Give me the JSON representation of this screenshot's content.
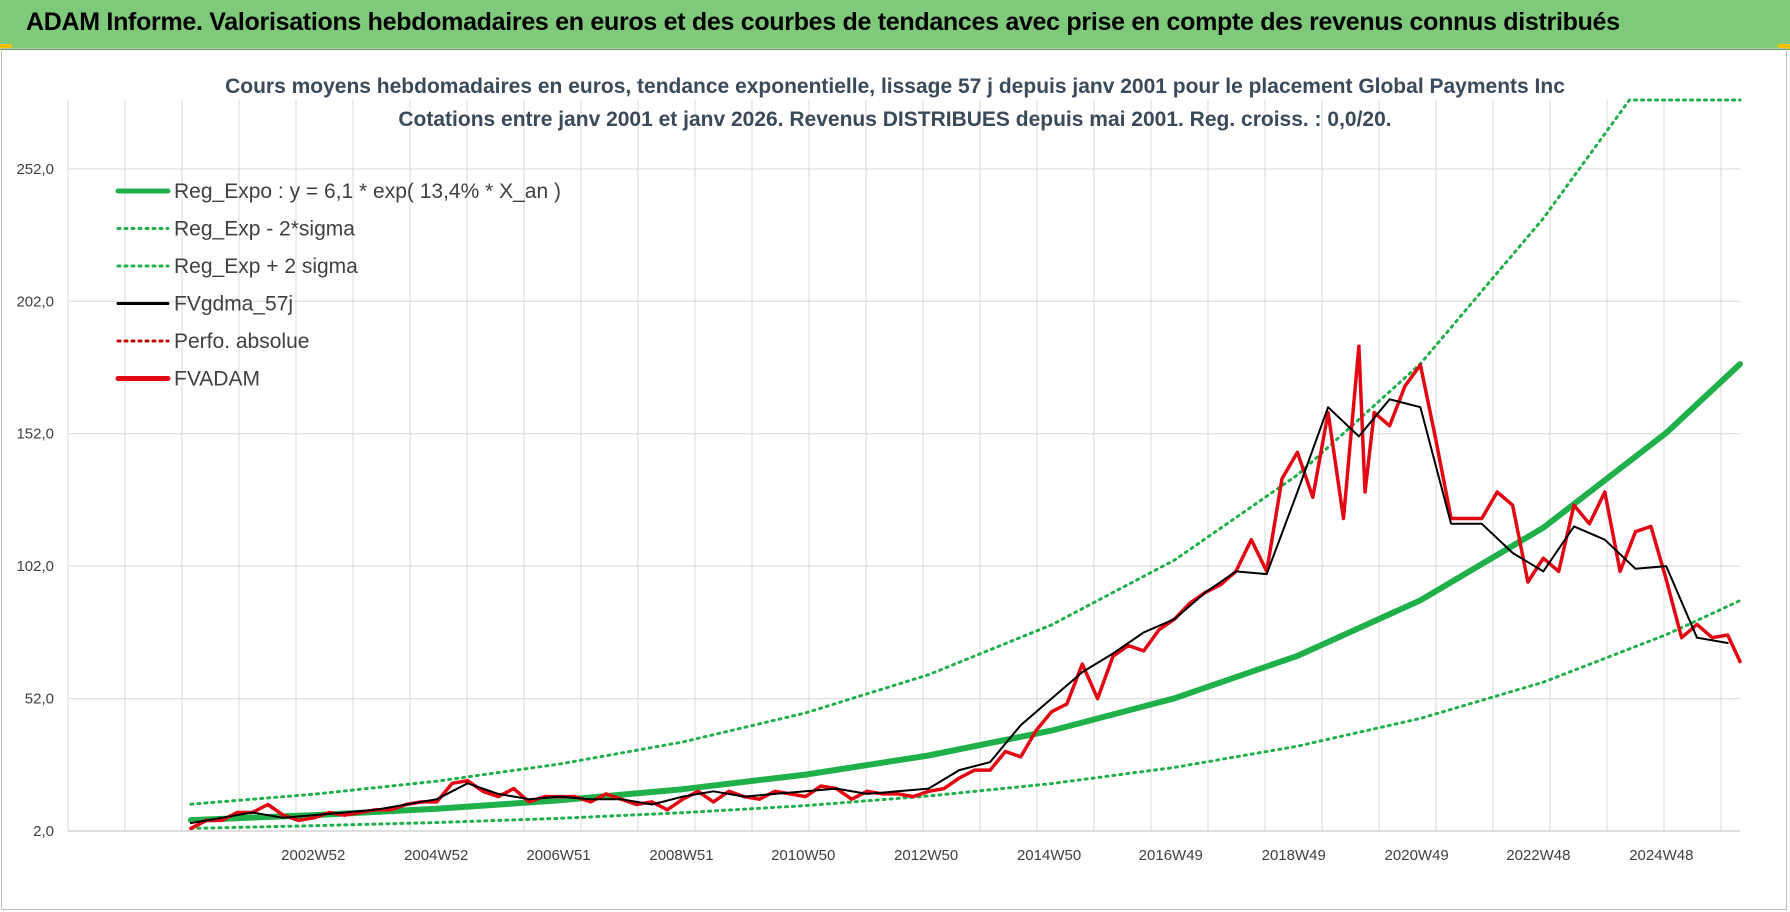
{
  "header": {
    "title": "ADAM Informe. Valorisations hebdomadaires en euros et des courbes de tendances avec prise en compte des revenus connus distribués"
  },
  "colors": {
    "header_bg": "#7fc97a",
    "trend": "#1fb04a",
    "price_smooth": "#000000",
    "price": "#e30613",
    "perf": "#c00000"
  },
  "chart_data": {
    "type": "line",
    "title_line1": "Cours moyens hebdomadaires en euros, tendance exponentielle, lissage 57 j depuis janv 2001 pour le placement Global Payments Inc",
    "title_line2": "Cotations entre janv 2001 et janv 2026. Revenus DISTRIBUES depuis mai 2001. Reg. croiss. : 0,0/20.",
    "ylim": [
      2,
      278
    ],
    "xlim": [
      1999.0,
      2026.2
    ],
    "yticks": [
      2.0,
      52.0,
      102.0,
      152.0,
      202.0,
      252.0
    ],
    "ytick_labels": [
      "2,0",
      "52,0",
      "102,0",
      "152,0",
      "202,0",
      "252,0"
    ],
    "xticks": [
      2002.99,
      2004.99,
      2006.98,
      2008.98,
      2010.96,
      2012.96,
      2014.96,
      2016.94,
      2018.94,
      2020.94,
      2022.92,
      2024.92
    ],
    "xtick_labels": [
      "2002W52",
      "2004W52",
      "2006W51",
      "2008W51",
      "2010W50",
      "2012W50",
      "2014W50",
      "2016W49",
      "2018W49",
      "2020W49",
      "2022W48",
      "2024W48"
    ],
    "grid": true,
    "legend_position": "top-left",
    "legend": [
      {
        "label": "Reg_Expo : y = 6,1 * exp( 13,4% *  X_an )",
        "style": "solid-thick",
        "color": "#1fb04a"
      },
      {
        "label": "Reg_Exp - 2*sigma",
        "style": "dotted",
        "color": "#1fb04a"
      },
      {
        "label": "Reg_Exp + 2 sigma",
        "style": "dotted",
        "color": "#1fb04a"
      },
      {
        "label": "FVgdma_57j",
        "style": "solid",
        "color": "#000000"
      },
      {
        "label": "Perfo. absolue",
        "style": "dotted",
        "color": "#c00000"
      },
      {
        "label": "FVADAM",
        "style": "solid-thick",
        "color": "#e30613"
      }
    ],
    "series": [
      {
        "name": "Reg_Expo : y = 6,1 * exp( 13,4% *  X_an )",
        "x": [
          2001.0,
          2003.0,
          2005.0,
          2007.0,
          2009.0,
          2011.0,
          2013.0,
          2015.0,
          2017.0,
          2019.0,
          2021.0,
          2023.0,
          2025.0,
          2026.2
        ],
        "y": [
          6.1,
          8.0,
          10.4,
          13.6,
          17.8,
          23.3,
          30.5,
          39.9,
          52.1,
          68.1,
          89.1,
          116.5,
          152.3,
          178.3
        ]
      },
      {
        "name": "Reg_Exp - 2*sigma",
        "x": [
          2001.0,
          2003.0,
          2005.0,
          2007.0,
          2009.0,
          2011.0,
          2013.0,
          2015.0,
          2017.0,
          2019.0,
          2021.0,
          2023.0,
          2025.0,
          2026.2
        ],
        "y": [
          3.0,
          4.0,
          5.2,
          6.8,
          8.9,
          11.6,
          15.2,
          19.9,
          26.0,
          34.0,
          44.5,
          58.2,
          76.1,
          89.0
        ]
      },
      {
        "name": "Reg_Exp + 2 sigma",
        "x": [
          2001.0,
          2003.0,
          2005.0,
          2007.0,
          2009.0,
          2011.0,
          2013.0,
          2015.0,
          2017.0,
          2019.0,
          2021.0,
          2023.0,
          2024.4,
          2025.0,
          2026.2
        ],
        "y": [
          12.1,
          15.9,
          20.8,
          27.3,
          35.6,
          46.6,
          61.0,
          79.8,
          104.3,
          136.4,
          178.4,
          233.3,
          278.0,
          278.0,
          278.0
        ]
      },
      {
        "name": "FVgdma_57j",
        "x": [
          2001.0,
          2001.5,
          2002.0,
          2002.5,
          2003.0,
          2003.5,
          2004.0,
          2004.5,
          2005.0,
          2005.5,
          2006.0,
          2006.5,
          2007.0,
          2007.5,
          2008.0,
          2008.5,
          2009.0,
          2009.5,
          2010.0,
          2010.5,
          2011.0,
          2011.5,
          2012.0,
          2012.5,
          2013.0,
          2013.5,
          2014.0,
          2014.5,
          2015.0,
          2015.5,
          2016.0,
          2016.5,
          2017.0,
          2017.5,
          2018.0,
          2018.5,
          2019.0,
          2019.5,
          2020.0,
          2020.5,
          2021.0,
          2021.5,
          2022.0,
          2022.5,
          2023.0,
          2023.5,
          2024.0,
          2024.5,
          2025.0,
          2025.5,
          2026.0
        ],
        "y": [
          5,
          7,
          9,
          7,
          8,
          9,
          10,
          12,
          14,
          20,
          16,
          14,
          15,
          14,
          14,
          12,
          15,
          17,
          15,
          16,
          17,
          18,
          16,
          17,
          18,
          25,
          28,
          42,
          52,
          62,
          69,
          77,
          82,
          92,
          100,
          99,
          130,
          162,
          151,
          165,
          162,
          118,
          118,
          107,
          100,
          117,
          112,
          101,
          102,
          75,
          73
        ]
      },
      {
        "name": "FVADAM",
        "x": [
          2001.0,
          2001.25,
          2001.5,
          2001.75,
          2002.0,
          2002.25,
          2002.5,
          2002.75,
          2003.0,
          2003.25,
          2003.5,
          2003.75,
          2004.0,
          2004.25,
          2004.5,
          2004.75,
          2005.0,
          2005.25,
          2005.5,
          2005.75,
          2006.0,
          2006.25,
          2006.5,
          2006.75,
          2007.0,
          2007.25,
          2007.5,
          2007.75,
          2008.0,
          2008.25,
          2008.5,
          2008.75,
          2009.0,
          2009.25,
          2009.5,
          2009.75,
          2010.0,
          2010.25,
          2010.5,
          2010.75,
          2011.0,
          2011.25,
          2011.5,
          2011.75,
          2012.0,
          2012.25,
          2012.5,
          2012.75,
          2013.0,
          2013.25,
          2013.5,
          2013.75,
          2014.0,
          2014.25,
          2014.5,
          2014.75,
          2015.0,
          2015.25,
          2015.5,
          2015.75,
          2016.0,
          2016.25,
          2016.5,
          2016.75,
          2017.0,
          2017.25,
          2017.5,
          2017.75,
          2018.0,
          2018.25,
          2018.5,
          2018.75,
          2019.0,
          2019.25,
          2019.5,
          2019.75,
          2020.0,
          2020.1,
          2020.25,
          2020.5,
          2020.75,
          2021.0,
          2021.25,
          2021.5,
          2021.75,
          2022.0,
          2022.25,
          2022.5,
          2022.75,
          2023.0,
          2023.25,
          2023.5,
          2023.75,
          2024.0,
          2024.25,
          2024.5,
          2024.75,
          2025.0,
          2025.25,
          2025.5,
          2025.75,
          2026.0,
          2026.2
        ],
        "y": [
          3,
          6,
          6,
          9,
          9,
          12,
          8,
          6,
          7,
          9,
          8,
          9,
          10,
          10,
          12,
          13,
          13,
          20,
          21,
          17,
          15,
          18,
          13,
          15,
          15,
          15,
          13,
          16,
          14,
          12,
          13,
          10,
          14,
          17,
          13,
          17,
          15,
          14,
          17,
          16,
          15,
          19,
          18,
          14,
          17,
          16,
          16,
          15,
          17,
          18,
          22,
          25,
          25,
          32,
          30,
          40,
          47,
          50,
          65,
          52,
          68,
          72,
          70,
          78,
          82,
          88,
          92,
          95,
          100,
          112,
          100,
          135,
          145,
          128,
          160,
          120,
          185,
          130,
          160,
          155,
          170,
          178,
          150,
          120,
          120,
          120,
          130,
          125,
          96,
          105,
          100,
          125,
          118,
          130,
          100,
          115,
          117,
          97,
          75,
          80,
          75,
          76,
          66
        ]
      }
    ]
  }
}
